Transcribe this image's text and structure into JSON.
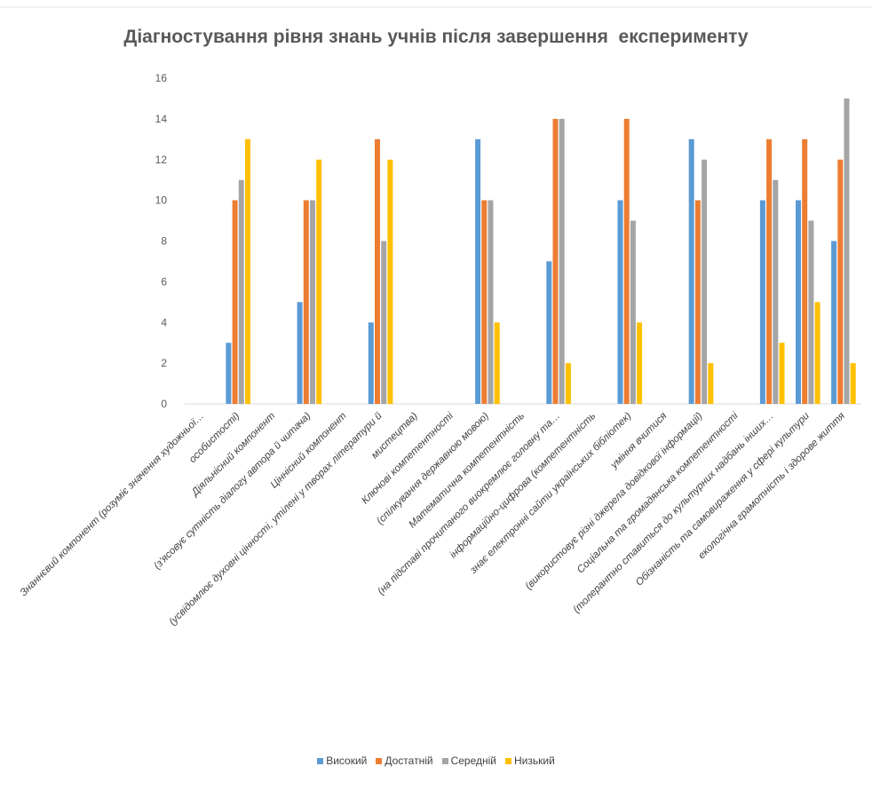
{
  "chart_data": {
    "type": "bar",
    "title": "Діагностування рівня знань учнів після завершення  експерименту",
    "ylim": [
      0,
      16
    ],
    "yticks": [
      0,
      2,
      4,
      6,
      8,
      10,
      12,
      14,
      16
    ],
    "grid": false,
    "legend_position": "bottom",
    "categories": [
      "Знаннєвий компонент (розуміє значення художньої…",
      "особистості)",
      "Діяльнісний компонент",
      "(з'ясовує сутність діалогу автора й читача)",
      "Ціннісний компонент",
      "(усвідомлює духовні цінності, утілені у творах літератури й",
      "мистецтва)",
      "Ключові компетентності",
      "(спілкування державною мовою)",
      "Математична компетентність",
      "(на підставі прочитаного виокремлює головну та…",
      "інформаційно-цифрова (компетентність",
      "знає електронні сайти українських бібліотек)",
      "уміння вчитися",
      "(використовує різні джерела довідкової інформації)",
      "Соціальна та громадянська компетентності",
      "(толерантно ставиться до культурних надбань інших…",
      "Обізнаність та самовираження у сфері культури",
      "екологічна грамотність і здорове життя"
    ],
    "series": [
      {
        "name": "Високий",
        "color": "#5B9BD5",
        "values": [
          null,
          3,
          null,
          5,
          null,
          4,
          null,
          null,
          13,
          null,
          7,
          null,
          10,
          null,
          13,
          null,
          10,
          10,
          8
        ]
      },
      {
        "name": "Достатній",
        "color": "#ED7D31",
        "values": [
          null,
          10,
          null,
          10,
          null,
          13,
          null,
          null,
          10,
          null,
          14,
          null,
          14,
          null,
          10,
          null,
          13,
          13,
          12
        ]
      },
      {
        "name": "Середній",
        "color": "#A5A5A5",
        "values": [
          null,
          11,
          null,
          10,
          null,
          8,
          null,
          null,
          10,
          null,
          14,
          null,
          9,
          null,
          12,
          null,
          11,
          9,
          15
        ]
      },
      {
        "name": "Низький",
        "color": "#FFC000",
        "values": [
          null,
          13,
          null,
          12,
          null,
          12,
          null,
          null,
          4,
          null,
          2,
          null,
          4,
          null,
          2,
          null,
          3,
          5,
          2
        ]
      }
    ]
  }
}
